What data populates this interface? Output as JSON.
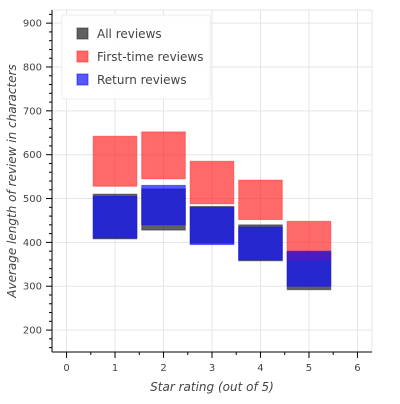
{
  "chart_data": {
    "type": "box",
    "title": "",
    "xlabel": "Star rating (out of 5)",
    "ylabel": "Average length of review in characters",
    "xlim": [
      -0.3,
      6.3
    ],
    "ylim": [
      150,
      930
    ],
    "x_ticks": [
      0,
      1,
      2,
      3,
      4,
      5,
      6
    ],
    "y_ticks": [
      200,
      300,
      400,
      500,
      600,
      700,
      800,
      900
    ],
    "grid": true,
    "legend_position": "top-left",
    "box_half_width": 0.45,
    "series": [
      {
        "name": "All reviews",
        "color": "#2b2b2b",
        "opacity": 0.75,
        "boxes": [
          {
            "x": 1,
            "low": 408,
            "high": 510
          },
          {
            "x": 2,
            "low": 428,
            "high": 522
          },
          {
            "x": 3,
            "low": 398,
            "high": 482
          },
          {
            "x": 4,
            "low": 358,
            "high": 440
          },
          {
            "x": 5,
            "low": 292,
            "high": 378
          }
        ]
      },
      {
        "name": "First-time reviews",
        "color": "#ff2a2a",
        "opacity": 0.7,
        "boxes": [
          {
            "x": 1,
            "low": 528,
            "high": 642
          },
          {
            "x": 2,
            "low": 545,
            "high": 652
          },
          {
            "x": 3,
            "low": 488,
            "high": 585
          },
          {
            "x": 4,
            "low": 452,
            "high": 542
          },
          {
            "x": 5,
            "low": 360,
            "high": 448
          }
        ]
      },
      {
        "name": "Return reviews",
        "color": "#1010ff",
        "opacity": 0.7,
        "boxes": [
          {
            "x": 1,
            "low": 410,
            "high": 505
          },
          {
            "x": 2,
            "low": 440,
            "high": 530
          },
          {
            "x": 3,
            "low": 395,
            "high": 480
          },
          {
            "x": 4,
            "low": 360,
            "high": 435
          },
          {
            "x": 5,
            "low": 300,
            "high": 380
          }
        ]
      }
    ]
  }
}
